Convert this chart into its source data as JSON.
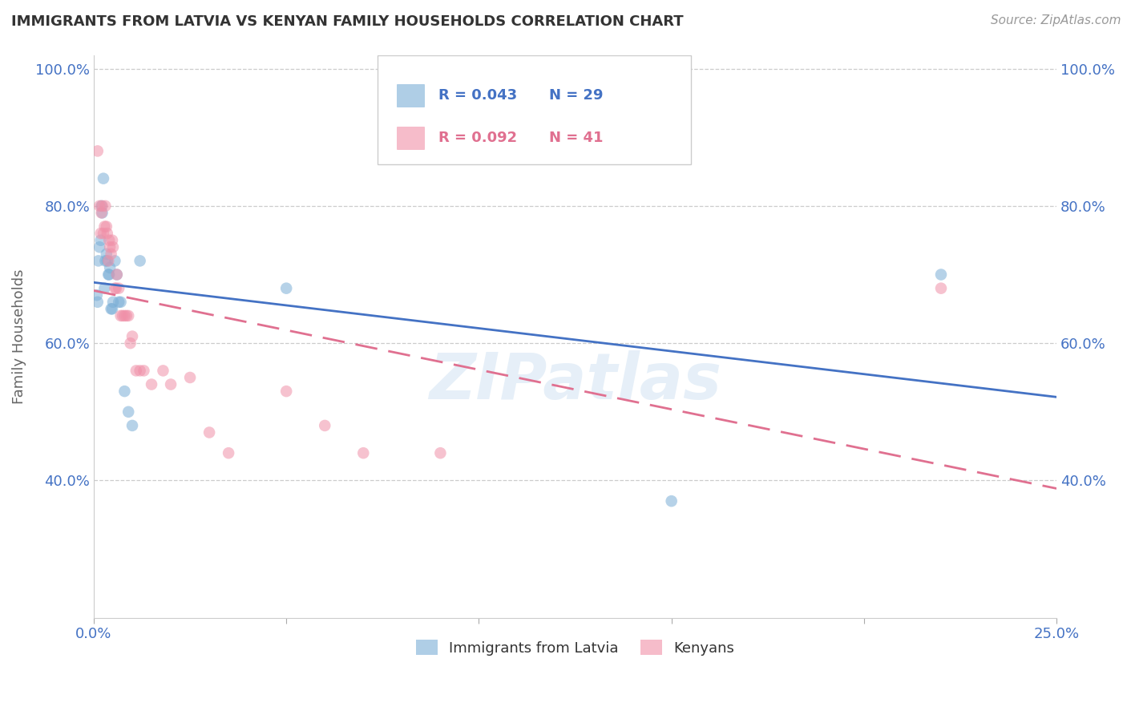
{
  "title": "IMMIGRANTS FROM LATVIA VS KENYAN FAMILY HOUSEHOLDS CORRELATION CHART",
  "source": "Source: ZipAtlas.com",
  "ylabel": "Family Households",
  "x_min": 0.0,
  "x_max": 0.25,
  "y_min": 0.2,
  "y_max": 1.02,
  "x_ticks": [
    0.0,
    0.05,
    0.1,
    0.15,
    0.2,
    0.25
  ],
  "x_tick_labels": [
    "0.0%",
    "",
    "",
    "",
    "",
    "25.0%"
  ],
  "y_ticks": [
    0.4,
    0.6,
    0.8,
    1.0
  ],
  "y_tick_labels": [
    "40.0%",
    "60.0%",
    "80.0%",
    "100.0%"
  ],
  "watermark": "ZIPatlas",
  "latvia_x": [
    0.0008,
    0.001,
    0.0012,
    0.0015,
    0.0018,
    0.002,
    0.0022,
    0.0025,
    0.0028,
    0.003,
    0.0033,
    0.0035,
    0.0038,
    0.004,
    0.0042,
    0.0045,
    0.0048,
    0.005,
    0.0055,
    0.006,
    0.0065,
    0.007,
    0.008,
    0.009,
    0.01,
    0.012,
    0.05,
    0.15,
    0.22
  ],
  "latvia_y": [
    0.67,
    0.66,
    0.72,
    0.74,
    0.75,
    0.8,
    0.79,
    0.84,
    0.68,
    0.72,
    0.73,
    0.72,
    0.7,
    0.7,
    0.71,
    0.65,
    0.65,
    0.66,
    0.72,
    0.7,
    0.66,
    0.66,
    0.53,
    0.5,
    0.48,
    0.72,
    0.68,
    0.37,
    0.7
  ],
  "kenya_x": [
    0.001,
    0.0015,
    0.0018,
    0.002,
    0.0022,
    0.0025,
    0.0028,
    0.003,
    0.0033,
    0.0035,
    0.0038,
    0.004,
    0.0042,
    0.0045,
    0.0048,
    0.005,
    0.0055,
    0.0058,
    0.006,
    0.0065,
    0.007,
    0.0075,
    0.008,
    0.0085,
    0.009,
    0.0095,
    0.01,
    0.011,
    0.012,
    0.013,
    0.015,
    0.018,
    0.02,
    0.025,
    0.03,
    0.035,
    0.05,
    0.06,
    0.07,
    0.09,
    0.22
  ],
  "kenya_y": [
    0.88,
    0.8,
    0.76,
    0.79,
    0.8,
    0.76,
    0.77,
    0.8,
    0.77,
    0.76,
    0.72,
    0.75,
    0.74,
    0.73,
    0.75,
    0.74,
    0.68,
    0.68,
    0.7,
    0.68,
    0.64,
    0.64,
    0.64,
    0.64,
    0.64,
    0.6,
    0.61,
    0.56,
    0.56,
    0.56,
    0.54,
    0.56,
    0.54,
    0.55,
    0.47,
    0.44,
    0.53,
    0.48,
    0.44,
    0.44,
    0.68
  ],
  "latvia_color": "#7aaed6",
  "kenya_color": "#f090a8",
  "latvia_line_color": "#4472c4",
  "kenya_line_color": "#e07090",
  "marker_size": 110,
  "marker_alpha": 0.55,
  "bg_color": "#ffffff",
  "grid_color": "#cccccc",
  "title_color": "#333333",
  "axis_color": "#4472c4",
  "legend_r1": "R = 0.043",
  "legend_n1": "N = 29",
  "legend_r2": "R = 0.092",
  "legend_n2": "N = 41"
}
